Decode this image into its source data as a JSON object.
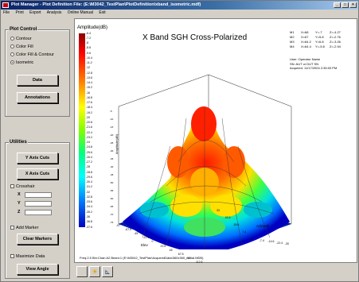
{
  "window": {
    "title": "Plot Manager - Plot Definition File: (E:\\M3042_TestPlan\\PlotDefinition\\xband_isometric.mdf)"
  },
  "menu": [
    "File",
    "Print",
    "Export",
    "Analysis",
    "Online Manual",
    "Exit"
  ],
  "plot_control": {
    "title": "Plot Control",
    "options": [
      "Contour",
      "Color Fill",
      "Color Fill & Contour",
      "Isometric"
    ],
    "selected": "Isometric",
    "data_button": "Data",
    "annotations_button": "Annotations"
  },
  "utilities": {
    "title": "Utilities",
    "y_axis_cuts": "Y Axis Cuts",
    "x_axis_cuts": "X Axis Cuts",
    "crosshair": "Crosshair",
    "x_label": "X",
    "y_label": "Y",
    "z_label": "Z",
    "add_marker": "Add Marker",
    "clear_markers": "Clear Markers",
    "maximize_data": "Maximize Data",
    "view_angle": "View Angle"
  },
  "plot": {
    "title": "X Band SGH Cross-Polarized",
    "amp_label": "Amplitude(dB)",
    "z_axis_label": "Amplitude(dB)",
    "azimuth_label": "Azimuth",
    "elev_label": "Elev",
    "colorbar_ticks": [
      "-6.4",
      "-7.2",
      "-8",
      "-8.8",
      "-9.6",
      "-10.4",
      "-11.2",
      "-12",
      "-12.8",
      "-13.6",
      "-14.4",
      "-15.2",
      "-16",
      "-16.8",
      "-17.6",
      "-18.4",
      "-19.2",
      "-20",
      "-20.8",
      "-21.6",
      "-22.4",
      "-23.2",
      "-24",
      "-24.8",
      "-25.6",
      "-26.4",
      "-27.2",
      "-28",
      "-28.8",
      "-29.6",
      "-30.4",
      "-31.2",
      "-32",
      "-32.8",
      "-33.6",
      "-34.4",
      "-35.2",
      "-36",
      "-36.8",
      "-37.6"
    ],
    "z_ticks": [
      "-5",
      "-10",
      "-15",
      "-20",
      "-25",
      "-30",
      "-35",
      "-40",
      "-45",
      "-50",
      "-55",
      "-60",
      "-65",
      "-70",
      "-75"
    ],
    "az_ticks": [
      "33",
      "22.4",
      "15.6",
      "7.4",
      "0",
      "-7.4",
      "-14.6",
      "-22.4",
      "-30"
    ],
    "el_ticks": [
      "-97",
      "-67.5",
      "-45",
      "-22.5",
      "0",
      "22.5",
      "45",
      "67.5",
      "97",
      "112.5"
    ],
    "markers": [
      {
        "id": "M1",
        "x": "X=68",
        "y": "Y=-7",
        "z": "Z=-4.27"
      },
      {
        "id": "M2",
        "x": "X=67",
        "y": "Y=5.8",
        "z": "Z=-2.76"
      },
      {
        "id": "M3",
        "x": "X=64.2",
        "y": "Y=6.8",
        "z": "Z=-3.26"
      },
      {
        "id": "M4",
        "x": "X=64.4",
        "y": "Y=-5.6",
        "z": "Z=-2.94"
      }
    ],
    "user_info": [
      "User: Operator Name",
      "SN: AUT or DUT SN",
      "Acquired: 11/17/2004 2:35:00 PM"
    ],
    "footer": "Freq:2.5 Bin:Chan A2 Beam:1 (E:\\M3042_TestPlan\\AcquiredData\\360x360_radial.MDB)"
  },
  "colors": {
    "titlebar": "#0a246a",
    "panel": "#d4d0c8"
  }
}
